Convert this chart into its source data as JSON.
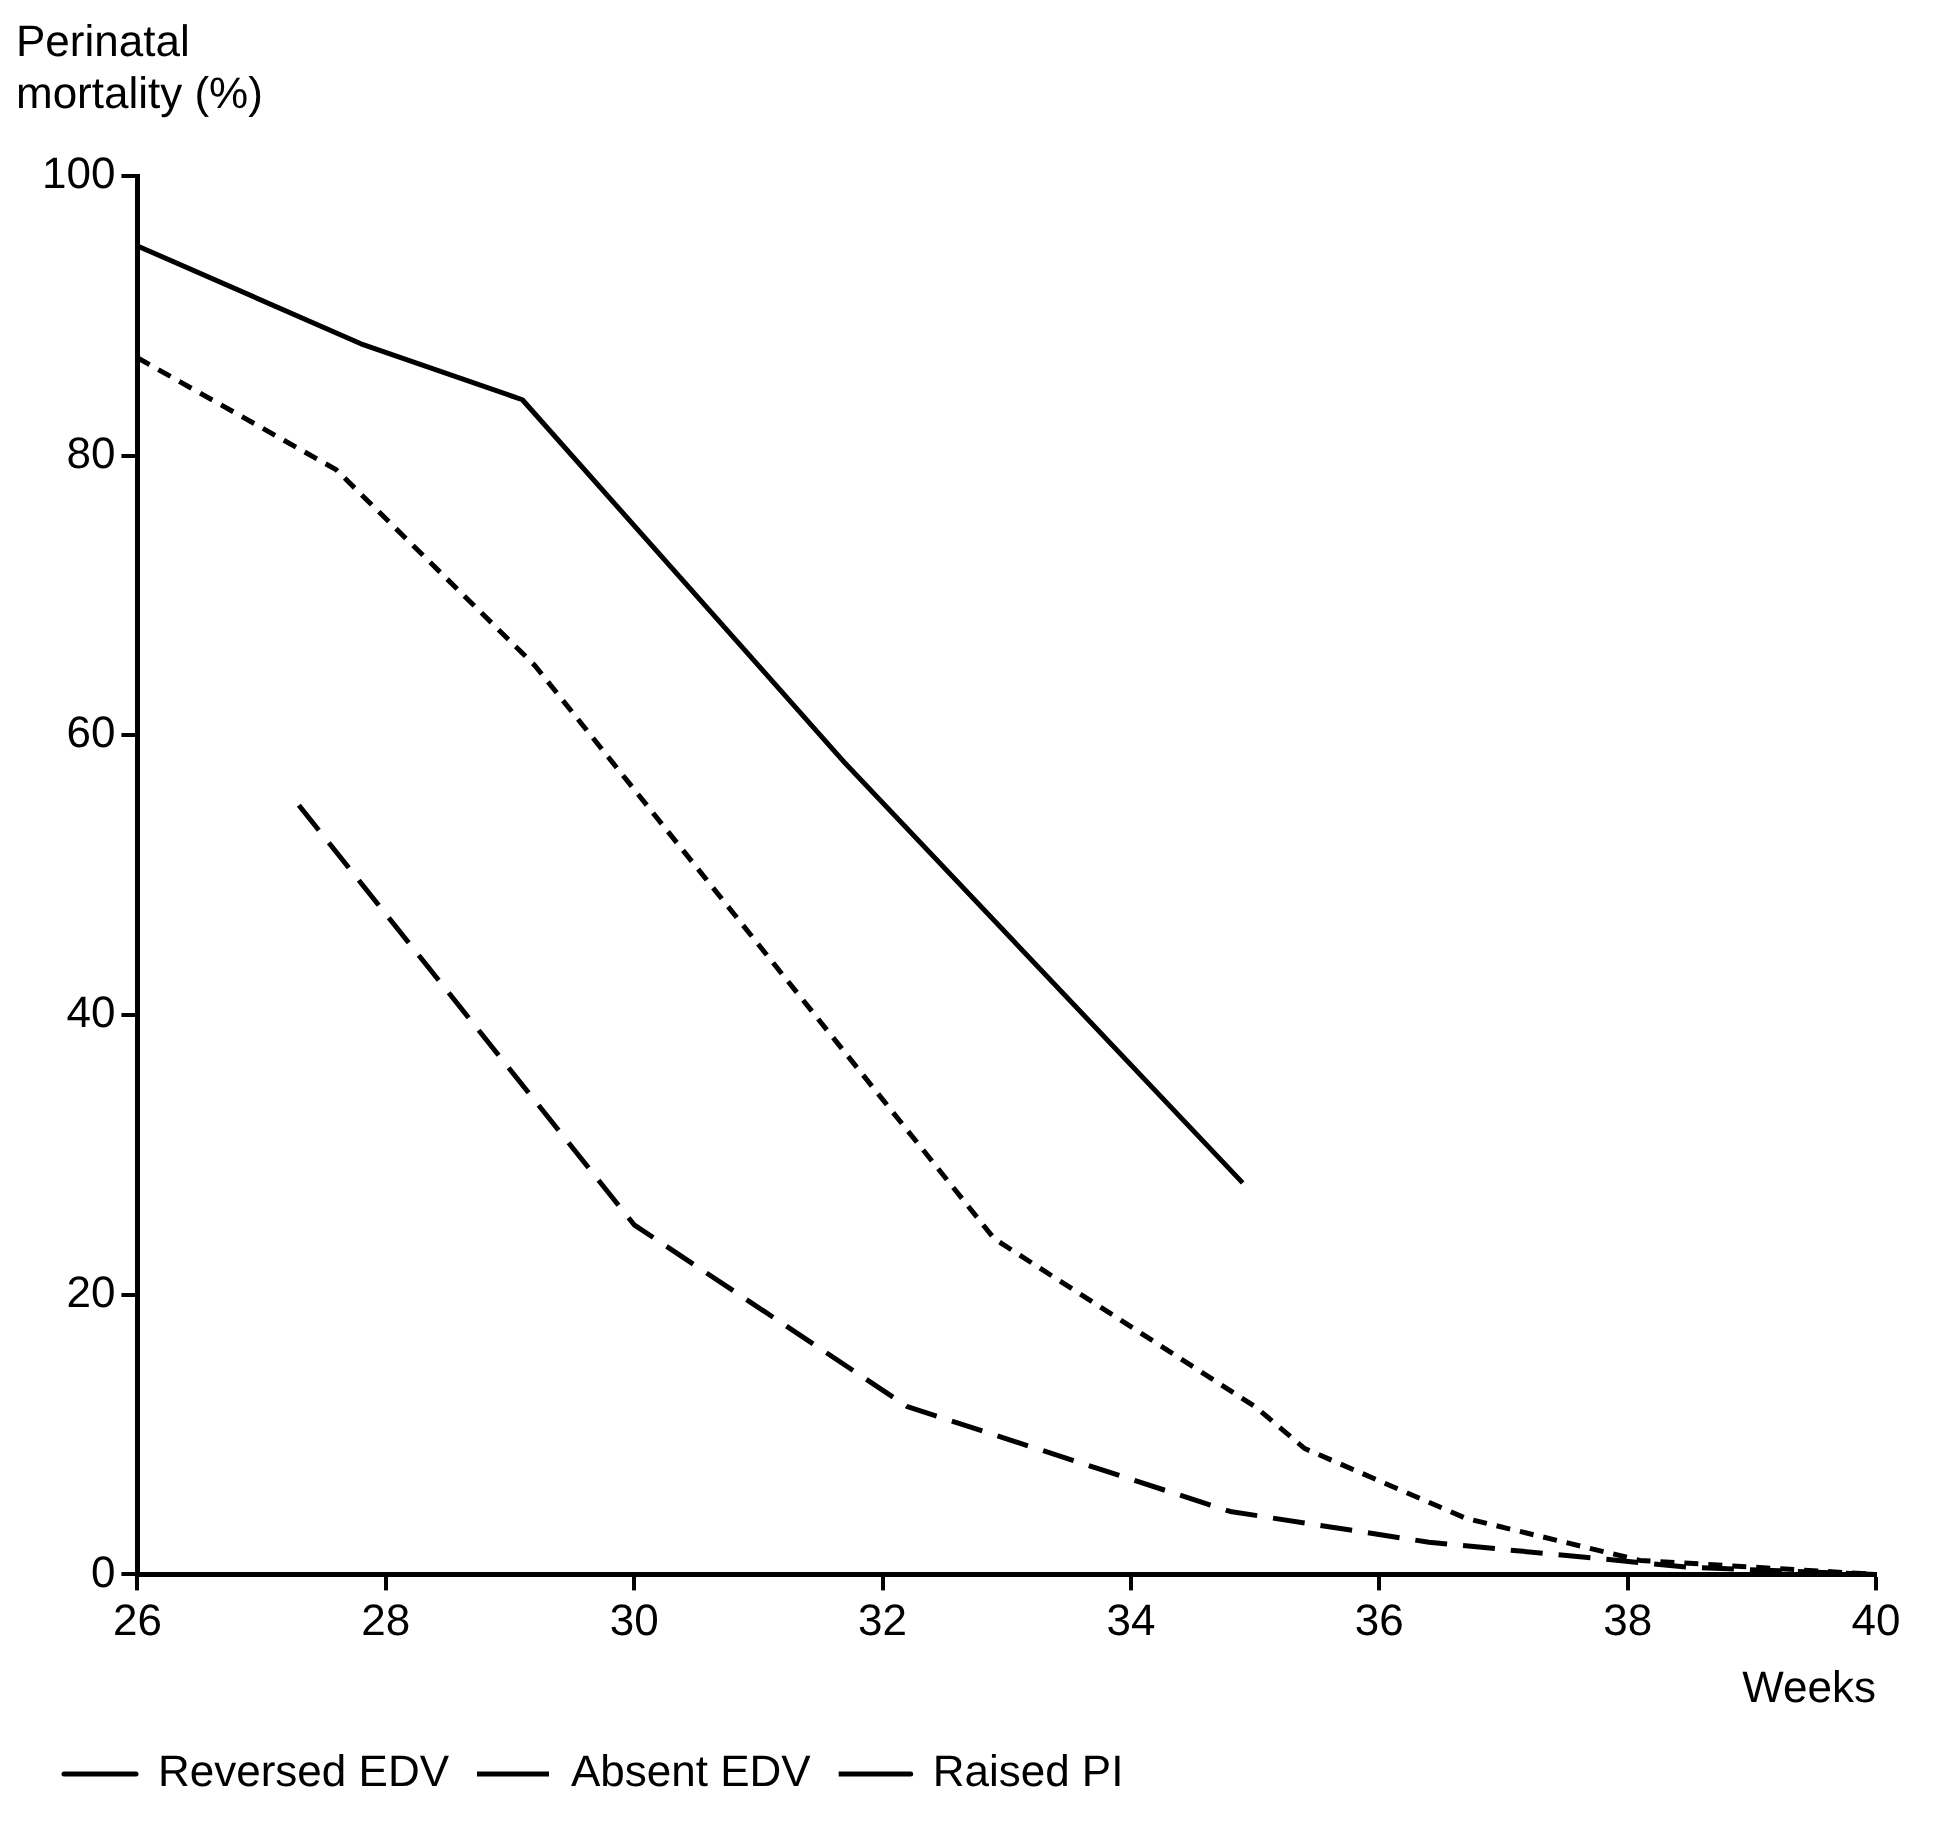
{
  "chart_data": {
    "type": "line",
    "ylabel": "Perinatal mortality (%)",
    "xlabel": "Weeks",
    "xlim": [
      26,
      40
    ],
    "xticks": [
      26,
      28,
      30,
      32,
      34,
      36,
      38,
      40
    ],
    "ylim": [
      0,
      100
    ],
    "yticks": [
      0,
      20,
      40,
      60,
      80,
      100
    ],
    "grid": false,
    "legend": "bottom left",
    "marker": "none",
    "series": [
      {
        "name": "Reversed EDV",
        "color": "#000000",
        "line_style": "solid",
        "x": [
          26,
          27.8,
          29.1,
          31.7,
          34.9
        ],
        "values": [
          95,
          88,
          84,
          58,
          28
        ]
      },
      {
        "name": "Absent EDV",
        "color": "#000000",
        "line_style": "dashed",
        "x": [
          26,
          27.6,
          29.2,
          32.9,
          35,
          35.4,
          36.7,
          38.1,
          40
        ],
        "values": [
          87,
          79,
          65,
          24,
          12,
          9,
          4,
          1,
          0
        ]
      },
      {
        "name": "Raised PI",
        "color": "#000000",
        "line_style": "dashed",
        "x": [
          27.3,
          30,
          32.2,
          34.8,
          36.4,
          38.5,
          40
        ],
        "values": [
          55,
          25,
          12,
          4.5,
          2.3,
          0.5,
          0
        ]
      }
    ]
  }
}
